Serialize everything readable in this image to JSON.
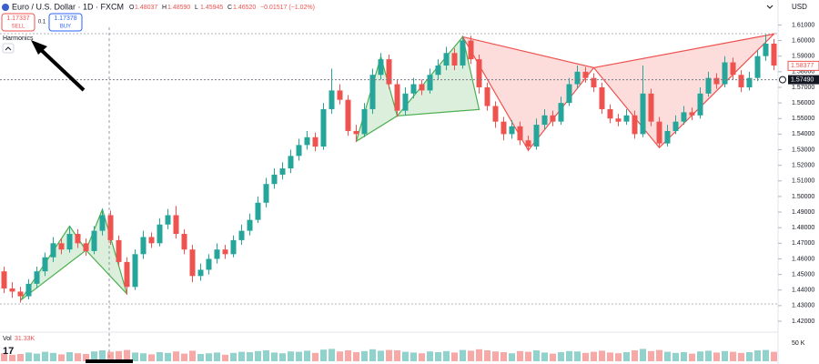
{
  "header": {
    "sell_price": "1.17337",
    "sell_label": "SELL",
    "spread": "0.1",
    "buy_price": "1.17378",
    "buy_label": "BUY",
    "indicator": "Harmonics",
    "currency": "USD"
  },
  "chart_data": {
    "type": "candlestick",
    "title": "Euro / U.S. Dollar · 1D · FXCM",
    "ohlc_legend": [
      {
        "label": "O",
        "value": "1.48037"
      },
      {
        "label": "H",
        "value": "1.48590"
      },
      {
        "label": "L",
        "value": "1.45945"
      },
      {
        "label": "C",
        "value": "1.46520"
      }
    ],
    "change": "−0.01517 (−1.02%)",
    "up_color": "#26a69a",
    "down_color": "#ef5350",
    "ylim": [
      1.413,
      1.626
    ],
    "yticks": [
      {
        "value": 1.42,
        "label": "1.42000"
      },
      {
        "value": 1.43,
        "label": "1.43000"
      },
      {
        "value": 1.44,
        "label": "1.44000"
      },
      {
        "value": 1.45,
        "label": "1.45000"
      },
      {
        "value": 1.46,
        "label": "1.46000"
      },
      {
        "value": 1.47,
        "label": "1.47000"
      },
      {
        "value": 1.48,
        "label": "1.48000"
      },
      {
        "value": 1.49,
        "label": "1.49000"
      },
      {
        "value": 1.5,
        "label": "1.50000"
      },
      {
        "value": 1.51,
        "label": "1.51000"
      },
      {
        "value": 1.52,
        "label": "1.52000"
      },
      {
        "value": 1.53,
        "label": "1.53000"
      },
      {
        "value": 1.54,
        "label": "1.54000"
      },
      {
        "value": 1.55,
        "label": "1.55000"
      },
      {
        "value": 1.56,
        "label": "1.56000"
      },
      {
        "value": 1.57,
        "label": "1.57000"
      },
      {
        "value": 1.58,
        "label": "1.58000"
      },
      {
        "value": 1.59,
        "label": "1.59000"
      },
      {
        "value": 1.6,
        "label": "1.60000"
      },
      {
        "value": 1.61,
        "label": "1.61000"
      }
    ],
    "grid": false,
    "ohlc": [
      [
        1.452,
        1.455,
        1.438,
        1.441
      ],
      [
        1.441,
        1.445,
        1.435,
        1.439
      ],
      [
        1.439,
        1.442,
        1.432,
        1.436
      ],
      [
        1.436,
        1.447,
        1.434,
        1.444
      ],
      [
        1.444,
        1.455,
        1.441,
        1.452
      ],
      [
        1.452,
        1.464,
        1.449,
        1.461
      ],
      [
        1.461,
        1.474,
        1.458,
        1.47
      ],
      [
        1.47,
        1.473,
        1.463,
        1.466
      ],
      [
        1.466,
        1.481,
        1.464,
        1.476
      ],
      [
        1.476,
        1.479,
        1.467,
        1.47
      ],
      [
        1.47,
        1.473,
        1.462,
        1.465
      ],
      [
        1.465,
        1.481,
        1.463,
        1.478
      ],
      [
        1.478,
        1.492,
        1.475,
        1.488
      ],
      [
        1.488,
        1.491,
        1.469,
        1.472
      ],
      [
        1.472,
        1.475,
        1.455,
        1.458
      ],
      [
        1.458,
        1.461,
        1.437,
        1.442
      ],
      [
        1.442,
        1.466,
        1.44,
        1.463
      ],
      [
        1.463,
        1.478,
        1.46,
        1.474
      ],
      [
        1.474,
        1.477,
        1.467,
        1.47
      ],
      [
        1.47,
        1.486,
        1.468,
        1.482
      ],
      [
        1.482,
        1.492,
        1.479,
        1.488
      ],
      [
        1.488,
        1.494,
        1.473,
        1.476
      ],
      [
        1.476,
        1.479,
        1.463,
        1.466
      ],
      [
        1.466,
        1.469,
        1.445,
        1.449
      ],
      [
        1.449,
        1.457,
        1.446,
        1.453
      ],
      [
        1.453,
        1.463,
        1.45,
        1.46
      ],
      [
        1.46,
        1.47,
        1.457,
        1.466
      ],
      [
        1.466,
        1.469,
        1.46,
        1.463
      ],
      [
        1.463,
        1.475,
        1.461,
        1.472
      ],
      [
        1.472,
        1.482,
        1.469,
        1.478
      ],
      [
        1.478,
        1.489,
        1.475,
        1.485
      ],
      [
        1.485,
        1.5,
        1.483,
        1.496
      ],
      [
        1.496,
        1.512,
        1.493,
        1.508
      ],
      [
        1.508,
        1.518,
        1.505,
        1.514
      ],
      [
        1.514,
        1.522,
        1.511,
        1.518
      ],
      [
        1.518,
        1.53,
        1.515,
        1.526
      ],
      [
        1.526,
        1.537,
        1.523,
        1.533
      ],
      [
        1.533,
        1.542,
        1.53,
        1.538
      ],
      [
        1.538,
        1.541,
        1.529,
        1.532
      ],
      [
        1.532,
        1.56,
        1.53,
        1.556
      ],
      [
        1.556,
        1.582,
        1.553,
        1.568
      ],
      [
        1.568,
        1.572,
        1.559,
        1.562
      ],
      [
        1.562,
        1.565,
        1.539,
        1.542
      ],
      [
        1.542,
        1.546,
        1.535,
        1.54
      ],
      [
        1.54,
        1.56,
        1.538,
        1.556
      ],
      [
        1.556,
        1.582,
        1.553,
        1.578
      ],
      [
        1.578,
        1.592,
        1.575,
        1.588
      ],
      [
        1.588,
        1.591,
        1.569,
        1.572
      ],
      [
        1.572,
        1.575,
        1.551,
        1.555
      ],
      [
        1.555,
        1.57,
        1.552,
        1.566
      ],
      [
        1.566,
        1.576,
        1.563,
        1.572
      ],
      [
        1.572,
        1.575,
        1.565,
        1.568
      ],
      [
        1.568,
        1.582,
        1.566,
        1.578
      ],
      [
        1.578,
        1.588,
        1.575,
        1.584
      ],
      [
        1.584,
        1.596,
        1.581,
        1.592
      ],
      [
        1.592,
        1.595,
        1.581,
        1.584
      ],
      [
        1.584,
        1.603,
        1.582,
        1.6
      ],
      [
        1.6,
        1.603,
        1.585,
        1.588
      ],
      [
        1.588,
        1.591,
        1.566,
        1.57
      ],
      [
        1.57,
        1.573,
        1.555,
        1.558
      ],
      [
        1.558,
        1.561,
        1.544,
        1.548
      ],
      [
        1.548,
        1.551,
        1.536,
        1.54
      ],
      [
        1.54,
        1.549,
        1.537,
        1.545
      ],
      [
        1.545,
        1.548,
        1.533,
        1.536
      ],
      [
        1.536,
        1.539,
        1.529,
        1.532
      ],
      [
        1.532,
        1.55,
        1.53,
        1.546
      ],
      [
        1.546,
        1.556,
        1.543,
        1.552
      ],
      [
        1.552,
        1.555,
        1.545,
        1.548
      ],
      [
        1.548,
        1.564,
        1.546,
        1.56
      ],
      [
        1.56,
        1.576,
        1.558,
        1.572
      ],
      [
        1.572,
        1.584,
        1.569,
        1.58
      ],
      [
        1.58,
        1.583,
        1.573,
        1.576
      ],
      [
        1.576,
        1.579,
        1.567,
        1.57
      ],
      [
        1.57,
        1.573,
        1.553,
        1.556
      ],
      [
        1.556,
        1.559,
        1.547,
        1.55
      ],
      [
        1.55,
        1.553,
        1.545,
        1.548
      ],
      [
        1.548,
        1.556,
        1.546,
        1.552
      ],
      [
        1.552,
        1.555,
        1.537,
        1.54
      ],
      [
        1.54,
        1.584,
        1.538,
        1.566
      ],
      [
        1.566,
        1.569,
        1.545,
        1.548
      ],
      [
        1.548,
        1.551,
        1.531,
        1.534
      ],
      [
        1.534,
        1.546,
        1.532,
        1.542
      ],
      [
        1.542,
        1.552,
        1.54,
        1.548
      ],
      [
        1.548,
        1.558,
        1.546,
        1.554
      ],
      [
        1.554,
        1.557,
        1.549,
        1.552
      ],
      [
        1.552,
        1.57,
        1.55,
        1.566
      ],
      [
        1.566,
        1.58,
        1.564,
        1.576
      ],
      [
        1.576,
        1.579,
        1.569,
        1.572
      ],
      [
        1.572,
        1.59,
        1.57,
        1.586
      ],
      [
        1.586,
        1.589,
        1.575,
        1.578
      ],
      [
        1.578,
        1.581,
        1.567,
        1.57
      ],
      [
        1.57,
        1.58,
        1.568,
        1.576
      ],
      [
        1.576,
        1.594,
        1.574,
        1.59
      ],
      [
        1.59,
        1.604,
        1.587,
        1.598
      ],
      [
        1.598,
        1.601,
        1.581,
        1.584
      ]
    ],
    "volume_label": "Vol",
    "volume_value": "31.33K",
    "volume": [
      22,
      18,
      20,
      24,
      21,
      26,
      23,
      19,
      25,
      22,
      20,
      27,
      30,
      26,
      28,
      31,
      24,
      22,
      19,
      25,
      23,
      27,
      21,
      29,
      20,
      22,
      24,
      18,
      23,
      26,
      25,
      28,
      30,
      24,
      22,
      27,
      26,
      29,
      23,
      32,
      34,
      27,
      30,
      25,
      28,
      33,
      29,
      31,
      30,
      26,
      24,
      22,
      27,
      25,
      28,
      24,
      31,
      29,
      33,
      30,
      27,
      25,
      22,
      28,
      26,
      30,
      24,
      21,
      25,
      28,
      27,
      23,
      26,
      29,
      24,
      22,
      25,
      30,
      34,
      28,
      31,
      26,
      23,
      25,
      21,
      27,
      29,
      24,
      28,
      26,
      23,
      25,
      30,
      31,
      26
    ],
    "volume_ylim": [
      0,
      50
    ],
    "volume_ticks": [
      {
        "value": 50,
        "label": "50 K"
      }
    ],
    "last_price": {
      "value": 1.5749,
      "label": "1.57490"
    },
    "marker_price": {
      "value": 1.58377,
      "label": "1.58377"
    },
    "patterns": [
      {
        "color": "#4caf50",
        "points": [
          [
            2,
            1.4334
          ],
          [
            8,
            1.481
          ],
          [
            10,
            1.4655
          ],
          [
            12,
            1.4917
          ],
          [
            15,
            1.4375
          ]
        ]
      },
      {
        "color": "#4caf50",
        "points": [
          [
            43,
            1.5354
          ],
          [
            46,
            1.5896
          ],
          [
            48,
            1.5517
          ],
          [
            56,
            1.6024
          ],
          [
            58,
            1.5558
          ]
        ]
      },
      {
        "color": "#ef5350",
        "points": [
          [
            56,
            1.6024
          ],
          [
            64,
            1.5296
          ],
          [
            72,
            1.5826
          ],
          [
            80,
            1.5313
          ],
          [
            94,
            1.6042
          ]
        ]
      }
    ]
  }
}
